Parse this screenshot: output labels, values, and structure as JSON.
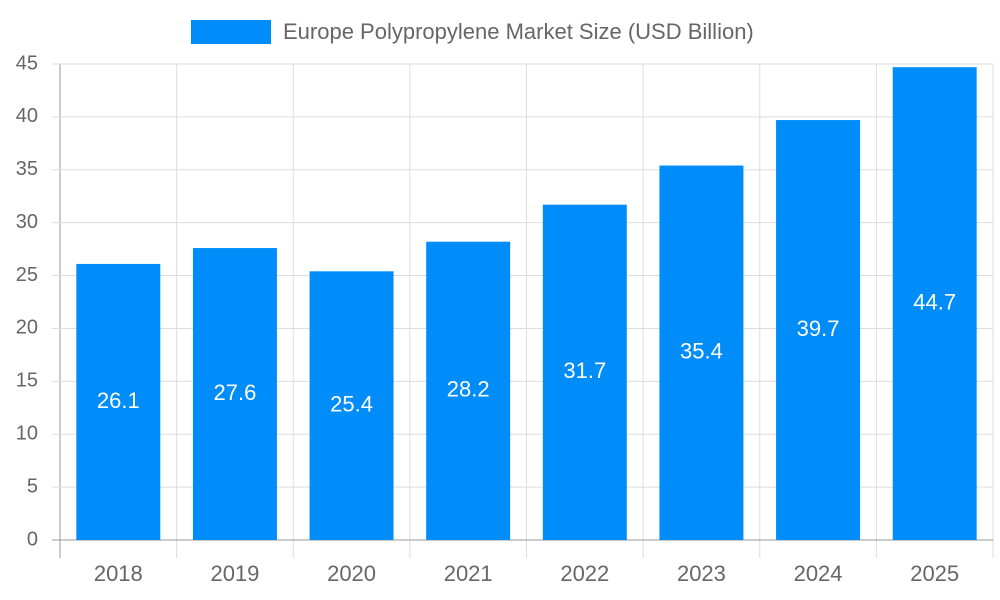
{
  "chart_data": {
    "type": "bar",
    "categories": [
      "2018",
      "2019",
      "2020",
      "2021",
      "2022",
      "2023",
      "2024",
      "2025"
    ],
    "series": [
      {
        "name": "Europe Polypropylene Market Size (USD Billion)",
        "color": "#008cf9",
        "values": [
          26.1,
          27.6,
          25.4,
          28.2,
          31.7,
          35.4,
          39.7,
          44.7
        ]
      }
    ],
    "ylim": [
      0,
      45
    ],
    "yticks": [
      0,
      5,
      10,
      15,
      20,
      25,
      30,
      35,
      40,
      45
    ],
    "grid": true,
    "legend": "top",
    "data_labels": true
  }
}
